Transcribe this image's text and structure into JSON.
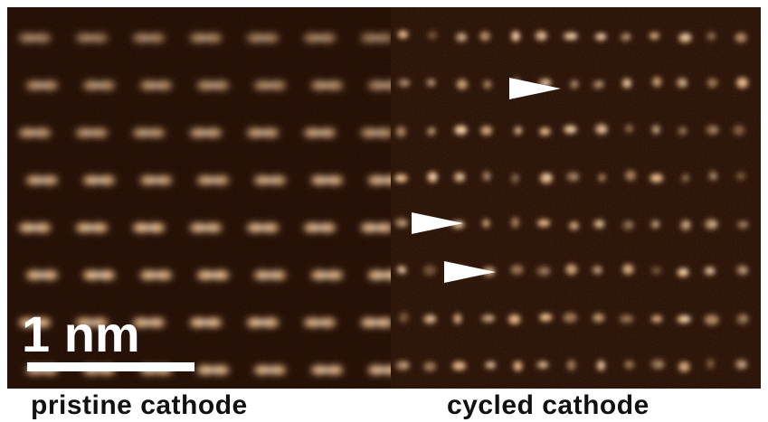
{
  "panels": {
    "left": {
      "caption": "pristine cathode"
    },
    "right": {
      "caption": "cycled cathode"
    }
  },
  "scale_bar": {
    "label": "1 nm"
  },
  "colors": {
    "background": "#1a0801",
    "atom": "#ffcf9a",
    "atom_core": "#fff2dc",
    "arrow": "#ffffff"
  },
  "marker_icons": [
    "arrowhead-icon",
    "arrowhead-icon",
    "arrowhead-icon"
  ]
}
